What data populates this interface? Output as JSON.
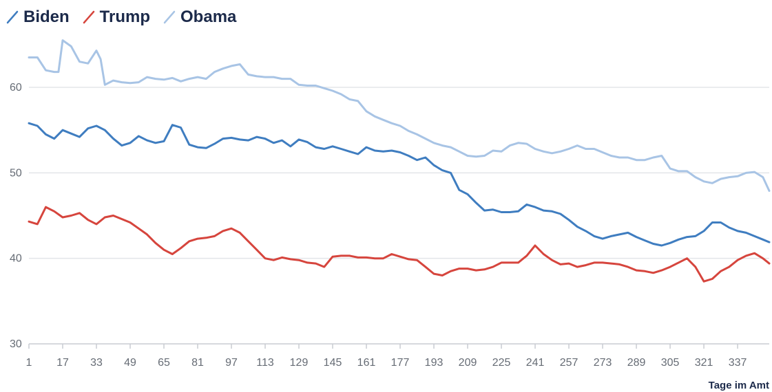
{
  "chart_data": {
    "type": "line",
    "title": "",
    "xlabel": "Tage im Amt",
    "ylabel": "",
    "xlim": [
      1,
      352
    ],
    "ylim": [
      30,
      67
    ],
    "x_ticks": [
      1,
      17,
      33,
      49,
      65,
      81,
      97,
      113,
      129,
      145,
      161,
      177,
      193,
      209,
      225,
      241,
      257,
      273,
      289,
      305,
      321,
      337
    ],
    "y_ticks": [
      30,
      40,
      50,
      60
    ],
    "grid": true,
    "legend_position": "top-left",
    "series": [
      {
        "name": "Biden",
        "color": "#3f7dc0",
        "x": [
          1,
          5,
          9,
          13,
          17,
          21,
          25,
          29,
          33,
          37,
          41,
          45,
          49,
          53,
          57,
          61,
          65,
          69,
          73,
          77,
          81,
          85,
          89,
          93,
          97,
          101,
          105,
          109,
          113,
          117,
          121,
          125,
          129,
          133,
          137,
          141,
          145,
          149,
          153,
          157,
          161,
          165,
          169,
          173,
          177,
          181,
          185,
          189,
          193,
          197,
          201,
          205,
          209,
          213,
          217,
          221,
          225,
          229,
          233,
          237,
          241,
          245,
          249,
          253,
          257,
          261,
          265,
          269,
          273,
          277,
          281,
          285,
          289,
          293,
          297,
          301,
          305,
          309,
          313,
          317,
          321,
          325,
          329,
          333,
          337,
          341,
          345,
          349,
          352
        ],
        "y": [
          55.8,
          55.5,
          54.5,
          54.0,
          55.0,
          54.6,
          54.2,
          55.2,
          55.5,
          55.0,
          54.0,
          53.2,
          53.5,
          54.3,
          53.8,
          53.5,
          53.7,
          55.6,
          55.3,
          53.3,
          53.0,
          52.9,
          53.4,
          54.0,
          54.1,
          53.9,
          53.8,
          54.2,
          54.0,
          53.5,
          53.8,
          53.1,
          53.9,
          53.6,
          53.0,
          52.8,
          53.1,
          52.8,
          52.5,
          52.2,
          53.0,
          52.6,
          52.5,
          52.6,
          52.4,
          52.0,
          51.5,
          51.8,
          50.9,
          50.3,
          50.0,
          48.0,
          47.5,
          46.5,
          45.6,
          45.7,
          45.4,
          45.4,
          45.5,
          46.3,
          46.0,
          45.6,
          45.5,
          45.2,
          44.5,
          43.7,
          43.2,
          42.6,
          42.3,
          42.6,
          42.8,
          43.0,
          42.5,
          42.1,
          41.7,
          41.5,
          41.8,
          42.2,
          42.5,
          42.6,
          43.2,
          44.2,
          44.2,
          43.6,
          43.2,
          43.0,
          42.6,
          42.2,
          41.9
        ]
      },
      {
        "name": "Trump",
        "color": "#d6453d",
        "x": [
          1,
          5,
          9,
          13,
          17,
          21,
          25,
          29,
          33,
          37,
          41,
          45,
          49,
          53,
          57,
          61,
          65,
          69,
          73,
          77,
          81,
          85,
          89,
          93,
          97,
          101,
          105,
          109,
          113,
          117,
          121,
          125,
          129,
          133,
          137,
          141,
          145,
          149,
          153,
          157,
          161,
          165,
          169,
          173,
          177,
          181,
          185,
          189,
          193,
          197,
          201,
          205,
          209,
          213,
          217,
          221,
          225,
          229,
          233,
          237,
          241,
          245,
          249,
          253,
          257,
          261,
          265,
          269,
          273,
          277,
          281,
          285,
          289,
          293,
          297,
          301,
          305,
          309,
          313,
          317,
          321,
          325,
          329,
          333,
          337,
          341,
          345,
          349,
          352
        ],
        "y": [
          44.3,
          44.0,
          46.0,
          45.5,
          44.8,
          45.0,
          45.3,
          44.5,
          44.0,
          44.8,
          45.0,
          44.6,
          44.2,
          43.5,
          42.8,
          41.8,
          41.0,
          40.5,
          41.2,
          42.0,
          42.3,
          42.4,
          42.6,
          43.2,
          43.5,
          43.0,
          42.0,
          41.0,
          40.0,
          39.8,
          40.1,
          39.9,
          39.8,
          39.5,
          39.4,
          39.0,
          40.2,
          40.3,
          40.3,
          40.1,
          40.1,
          40.0,
          40.0,
          40.5,
          40.2,
          39.9,
          39.8,
          39.0,
          38.2,
          38.0,
          38.5,
          38.8,
          38.8,
          38.6,
          38.7,
          39.0,
          39.5,
          39.5,
          39.5,
          40.3,
          41.5,
          40.5,
          39.8,
          39.3,
          39.4,
          39.0,
          39.2,
          39.5,
          39.5,
          39.4,
          39.3,
          39.0,
          38.6,
          38.5,
          38.3,
          38.6,
          39.0,
          39.5,
          40.0,
          39.0,
          37.3,
          37.6,
          38.5,
          39.0,
          39.8,
          40.3,
          40.6,
          40.0,
          39.4
        ]
      },
      {
        "name": "Obama",
        "color": "#a8c4e5",
        "x": [
          1,
          5,
          9,
          13,
          15,
          17,
          21,
          25,
          29,
          33,
          35,
          37,
          41,
          45,
          49,
          53,
          57,
          61,
          65,
          69,
          73,
          77,
          81,
          85,
          89,
          93,
          97,
          101,
          105,
          109,
          113,
          117,
          121,
          125,
          129,
          133,
          137,
          141,
          145,
          149,
          153,
          157,
          161,
          165,
          169,
          173,
          177,
          181,
          185,
          189,
          193,
          197,
          201,
          205,
          209,
          213,
          217,
          221,
          225,
          229,
          233,
          237,
          241,
          245,
          249,
          253,
          257,
          261,
          265,
          269,
          273,
          277,
          281,
          285,
          289,
          293,
          297,
          301,
          305,
          309,
          313,
          317,
          321,
          325,
          329,
          333,
          337,
          341,
          345,
          349,
          352
        ],
        "y": [
          63.5,
          63.5,
          62.0,
          61.8,
          61.8,
          65.5,
          64.8,
          63.0,
          62.8,
          64.3,
          63.3,
          60.3,
          60.8,
          60.6,
          60.5,
          60.6,
          61.2,
          61.0,
          60.9,
          61.1,
          60.7,
          61.0,
          61.2,
          61.0,
          61.8,
          62.2,
          62.5,
          62.7,
          61.5,
          61.3,
          61.2,
          61.2,
          61.0,
          61.0,
          60.3,
          60.2,
          60.2,
          59.9,
          59.6,
          59.2,
          58.6,
          58.4,
          57.2,
          56.6,
          56.2,
          55.8,
          55.5,
          54.9,
          54.5,
          54.0,
          53.5,
          53.2,
          53.0,
          52.5,
          52.0,
          51.9,
          52.0,
          52.6,
          52.5,
          53.2,
          53.5,
          53.4,
          52.8,
          52.5,
          52.3,
          52.5,
          52.8,
          53.2,
          52.8,
          52.8,
          52.4,
          52.0,
          51.8,
          51.8,
          51.5,
          51.5,
          51.8,
          52.0,
          50.5,
          50.2,
          50.2,
          49.5,
          49.0,
          48.8,
          49.3,
          49.5,
          49.6,
          50.0,
          50.1,
          49.5,
          47.9
        ]
      }
    ]
  }
}
